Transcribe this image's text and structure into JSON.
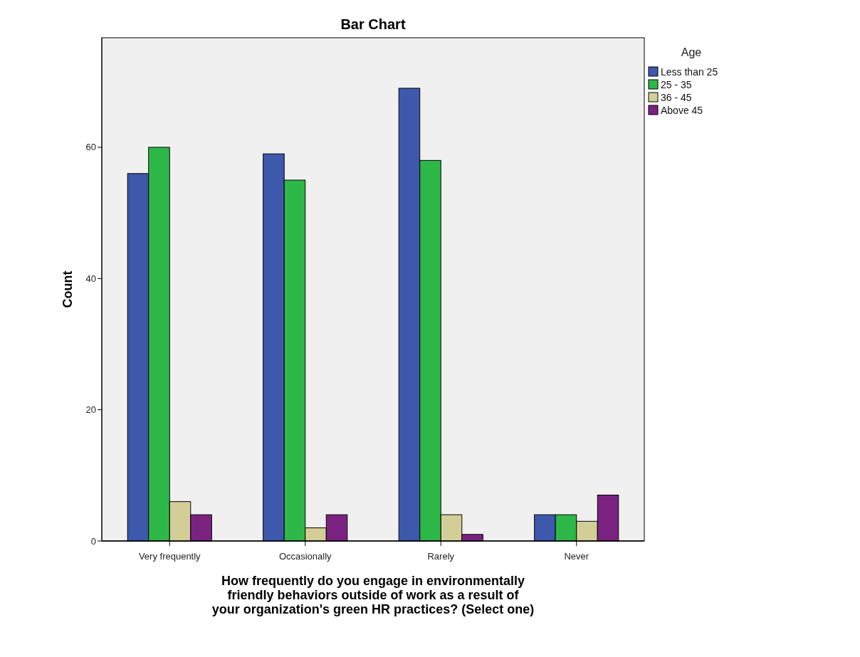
{
  "chart_data": {
    "type": "bar",
    "title": "Bar Chart",
    "xlabel": "How frequently do you engage in environmentally friendly behaviors outside of work as a result of your organization's green HR practices? (Select one)",
    "ylabel": "Count",
    "legend_title": "Age",
    "legend": "top right",
    "categories": [
      "Very frequently",
      "Occasionally",
      "Rarely",
      "Never"
    ],
    "series": [
      {
        "name": "Less than 25",
        "color": "#3e58ac",
        "values": [
          56,
          59,
          69,
          4
        ]
      },
      {
        "name": "25 - 35",
        "color": "#2eb848",
        "values": [
          60,
          55,
          58,
          4
        ]
      },
      {
        "name": "36 - 45",
        "color": "#d3ce97",
        "values": [
          6,
          2,
          4,
          3
        ]
      },
      {
        "name": "Above 45",
        "color": "#7b2281",
        "values": [
          4,
          4,
          1,
          7
        ]
      }
    ],
    "ylim": [
      0,
      76.7
    ],
    "yticks": [
      0,
      20,
      40,
      60
    ],
    "grid": false
  }
}
